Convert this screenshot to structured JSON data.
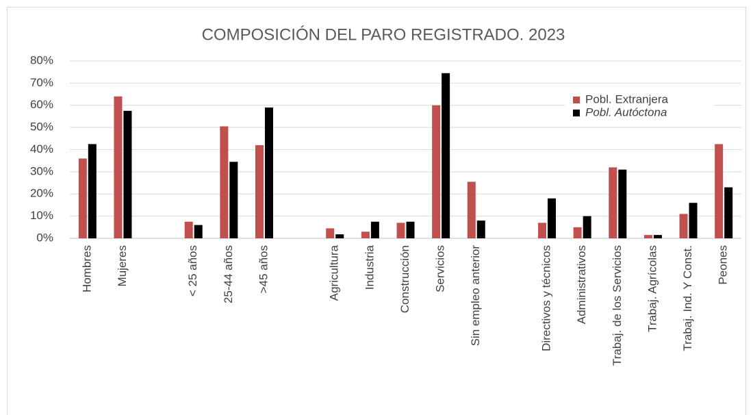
{
  "chart_data": {
    "type": "bar",
    "title": "COMPOSICIÓN DEL PARO REGISTRADO. 2023",
    "categories": [
      "Hombres",
      "Mujeres",
      null,
      "< 25 años",
      "25-44 años",
      ">45 años",
      null,
      "Agricultura",
      "Industria",
      "Construcción",
      "Servicios",
      "Sin empleo anterior",
      null,
      "Directivos y técnicos",
      "Administrativos",
      "Trabaj. de los Servicios",
      "Trabaj. Agrícolas",
      "Trabaj. Ind. Y Const.",
      "Peones"
    ],
    "series": [
      {
        "name": "Pobl. Extranjera",
        "color": "#c0504d",
        "font_style": "normal",
        "values": [
          36,
          64,
          null,
          7.5,
          50.5,
          42,
          null,
          4.5,
          3,
          7,
          60,
          25.5,
          null,
          7,
          5,
          32,
          1.5,
          11,
          42.5
        ]
      },
      {
        "name": "Pobl. Autóctona",
        "color": "#000000",
        "font_style": "italic",
        "values": [
          42.5,
          57.5,
          null,
          6,
          34.5,
          59,
          null,
          1.8,
          7.5,
          7.5,
          74.5,
          8,
          null,
          18,
          10,
          31,
          1.5,
          16,
          23
        ]
      }
    ],
    "ylim": [
      0,
      80
    ],
    "yticks": [
      {
        "value": 0,
        "label": "0%"
      },
      {
        "value": 10,
        "label": "10%"
      },
      {
        "value": 20,
        "label": "20%"
      },
      {
        "value": 30,
        "label": "30%"
      },
      {
        "value": 40,
        "label": "40%"
      },
      {
        "value": 50,
        "label": "50%"
      },
      {
        "value": 60,
        "label": "60%"
      },
      {
        "value": 70,
        "label": "70%"
      },
      {
        "value": 80,
        "label": "80%"
      }
    ],
    "grid": true,
    "legend": "top-right"
  }
}
